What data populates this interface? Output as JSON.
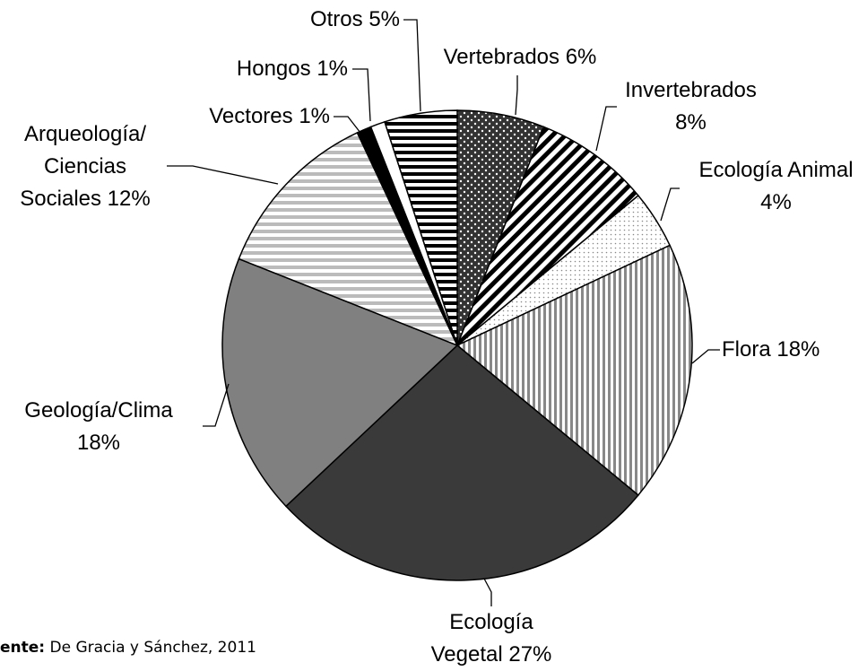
{
  "chart_data": {
    "type": "pie",
    "categories": [
      "Vertebrados",
      "Invertebrados",
      "Ecología Animal",
      "Flora",
      "Ecología Vegetal",
      "Geología/Clima",
      "Arqueología/ Ciencias Sociales",
      "Vectores",
      "Hongos",
      "Otros"
    ],
    "values": [
      6,
      8,
      4,
      18,
      27,
      18,
      12,
      1,
      1,
      5
    ],
    "value_labels": [
      "6%",
      "8%",
      "4%",
      "18%",
      "27%",
      "18%",
      "12%",
      "1%",
      "1%",
      "5%"
    ],
    "colors": [
      "#333333",
      "#000000",
      "#888888",
      "#888888",
      "#3a3a3a",
      "#808080",
      "#bbbbbb",
      "#000000",
      "#ffffff",
      "#000000"
    ],
    "patterns": [
      "dots",
      "diagonal",
      "dots-light",
      "vertical",
      "solid",
      "solid",
      "horizontal",
      "solid",
      "solid",
      "horizontal"
    ],
    "note": {
      "label": "ente:",
      "text": "De Gracia y Sánchez, 2011"
    }
  }
}
